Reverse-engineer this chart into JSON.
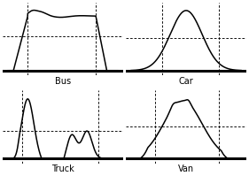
{
  "panels": [
    "Bus",
    "Car",
    "Truck",
    "Van"
  ],
  "configs": {
    "Bus": {
      "vx": [
        0.18,
        0.8
      ],
      "hy": 0.55,
      "xlim": [
        -0.05,
        1.05
      ],
      "ylim": [
        -0.08,
        1.1
      ]
    },
    "Car": {
      "vx": [
        0.28,
        0.8
      ],
      "hy": 0.52,
      "xlim": [
        -0.05,
        1.05
      ],
      "ylim": [
        -0.08,
        1.1
      ]
    },
    "Truck": {
      "vx": [
        0.13,
        0.82
      ],
      "hy": 0.42,
      "xlim": [
        -0.05,
        1.05
      ],
      "ylim": [
        -0.08,
        1.05
      ]
    },
    "Van": {
      "vx": [
        0.22,
        0.8
      ],
      "hy": 0.52,
      "xlim": [
        -0.05,
        1.05
      ],
      "ylim": [
        -0.08,
        1.1
      ]
    }
  }
}
